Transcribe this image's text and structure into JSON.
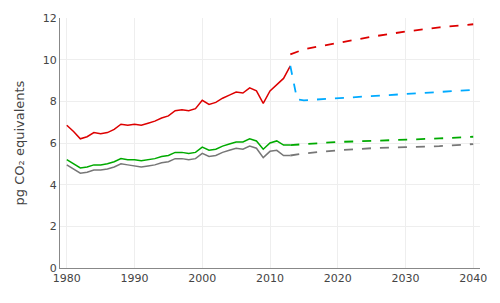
{
  "chart_data": {
    "type": "line",
    "ylabel": "pg CO₂ equivalents",
    "xlim": [
      1979,
      2041
    ],
    "ylim": [
      0,
      12
    ],
    "xticks": [
      1980,
      1990,
      2000,
      2010,
      2020,
      2030,
      2040
    ],
    "yticks": [
      0,
      2,
      4,
      6,
      8,
      10,
      12
    ],
    "grid": true,
    "series": [
      {
        "color": "#777777",
        "line_style": "solid",
        "x": [
          1980,
          1981,
          1982,
          1983,
          1984,
          1985,
          1986,
          1987,
          1988,
          1989,
          1990,
          1991,
          1992,
          1993,
          1994,
          1995,
          1996,
          1997,
          1998,
          1999,
          2000,
          2001,
          2002,
          2003,
          2004,
          2005,
          2006,
          2007,
          2008,
          2009,
          2010,
          2011,
          2012,
          2013
        ],
        "values": [
          4.95,
          4.75,
          4.55,
          4.6,
          4.7,
          4.7,
          4.75,
          4.85,
          5.0,
          4.95,
          4.9,
          4.85,
          4.9,
          4.95,
          5.05,
          5.1,
          5.25,
          5.25,
          5.2,
          5.25,
          5.5,
          5.35,
          5.4,
          5.55,
          5.65,
          5.75,
          5.7,
          5.85,
          5.75,
          5.3,
          5.6,
          5.65,
          5.4,
          5.4
        ]
      },
      {
        "color": "#00aa00",
        "line_style": "solid",
        "x": [
          1980,
          1981,
          1982,
          1983,
          1984,
          1985,
          1986,
          1987,
          1988,
          1989,
          1990,
          1991,
          1992,
          1993,
          1994,
          1995,
          1996,
          1997,
          1998,
          1999,
          2000,
          2001,
          2002,
          2003,
          2004,
          2005,
          2006,
          2007,
          2008,
          2009,
          2010,
          2011,
          2012,
          2013
        ],
        "values": [
          5.2,
          5.0,
          4.8,
          4.85,
          4.95,
          4.95,
          5.0,
          5.1,
          5.25,
          5.2,
          5.2,
          5.15,
          5.2,
          5.25,
          5.35,
          5.4,
          5.55,
          5.55,
          5.5,
          5.55,
          5.8,
          5.65,
          5.7,
          5.85,
          5.95,
          6.05,
          6.05,
          6.2,
          6.1,
          5.7,
          6.0,
          6.1,
          5.9,
          5.9
        ]
      },
      {
        "color": "#dd0000",
        "line_style": "solid",
        "x": [
          1980,
          1981,
          1982,
          1983,
          1984,
          1985,
          1986,
          1987,
          1988,
          1989,
          1990,
          1991,
          1992,
          1993,
          1994,
          1995,
          1996,
          1997,
          1998,
          1999,
          2000,
          2001,
          2002,
          2003,
          2004,
          2005,
          2006,
          2007,
          2008,
          2009,
          2010,
          2011,
          2012,
          2013
        ],
        "values": [
          6.85,
          6.55,
          6.2,
          6.3,
          6.5,
          6.45,
          6.5,
          6.65,
          6.9,
          6.85,
          6.9,
          6.85,
          6.95,
          7.05,
          7.2,
          7.3,
          7.55,
          7.6,
          7.55,
          7.65,
          8.05,
          7.85,
          7.95,
          8.15,
          8.3,
          8.45,
          8.4,
          8.65,
          8.5,
          7.9,
          8.5,
          8.8,
          9.1,
          9.7
        ]
      },
      {
        "color": "#777777",
        "line_style": "dashed",
        "x": [
          2013,
          2015,
          2020,
          2025,
          2030,
          2035,
          2040
        ],
        "values": [
          5.4,
          5.5,
          5.65,
          5.75,
          5.8,
          5.85,
          5.95
        ]
      },
      {
        "color": "#00aa00",
        "line_style": "dashed",
        "x": [
          2013,
          2015,
          2020,
          2025,
          2030,
          2035,
          2040
        ],
        "values": [
          5.9,
          5.95,
          6.05,
          6.1,
          6.15,
          6.22,
          6.3
        ]
      },
      {
        "color": "#dd0000",
        "line_style": "dashed",
        "x": [
          2013,
          2015,
          2020,
          2025,
          2030,
          2035,
          2040
        ],
        "values": [
          10.25,
          10.5,
          10.8,
          11.1,
          11.35,
          11.55,
          11.7
        ]
      },
      {
        "color": "#00aaff",
        "line_style": "dashed",
        "x": [
          2013,
          2014,
          2015,
          2020,
          2025,
          2030,
          2035,
          2040
        ],
        "values": [
          9.7,
          8.1,
          8.05,
          8.15,
          8.25,
          8.35,
          8.45,
          8.55
        ]
      }
    ]
  }
}
